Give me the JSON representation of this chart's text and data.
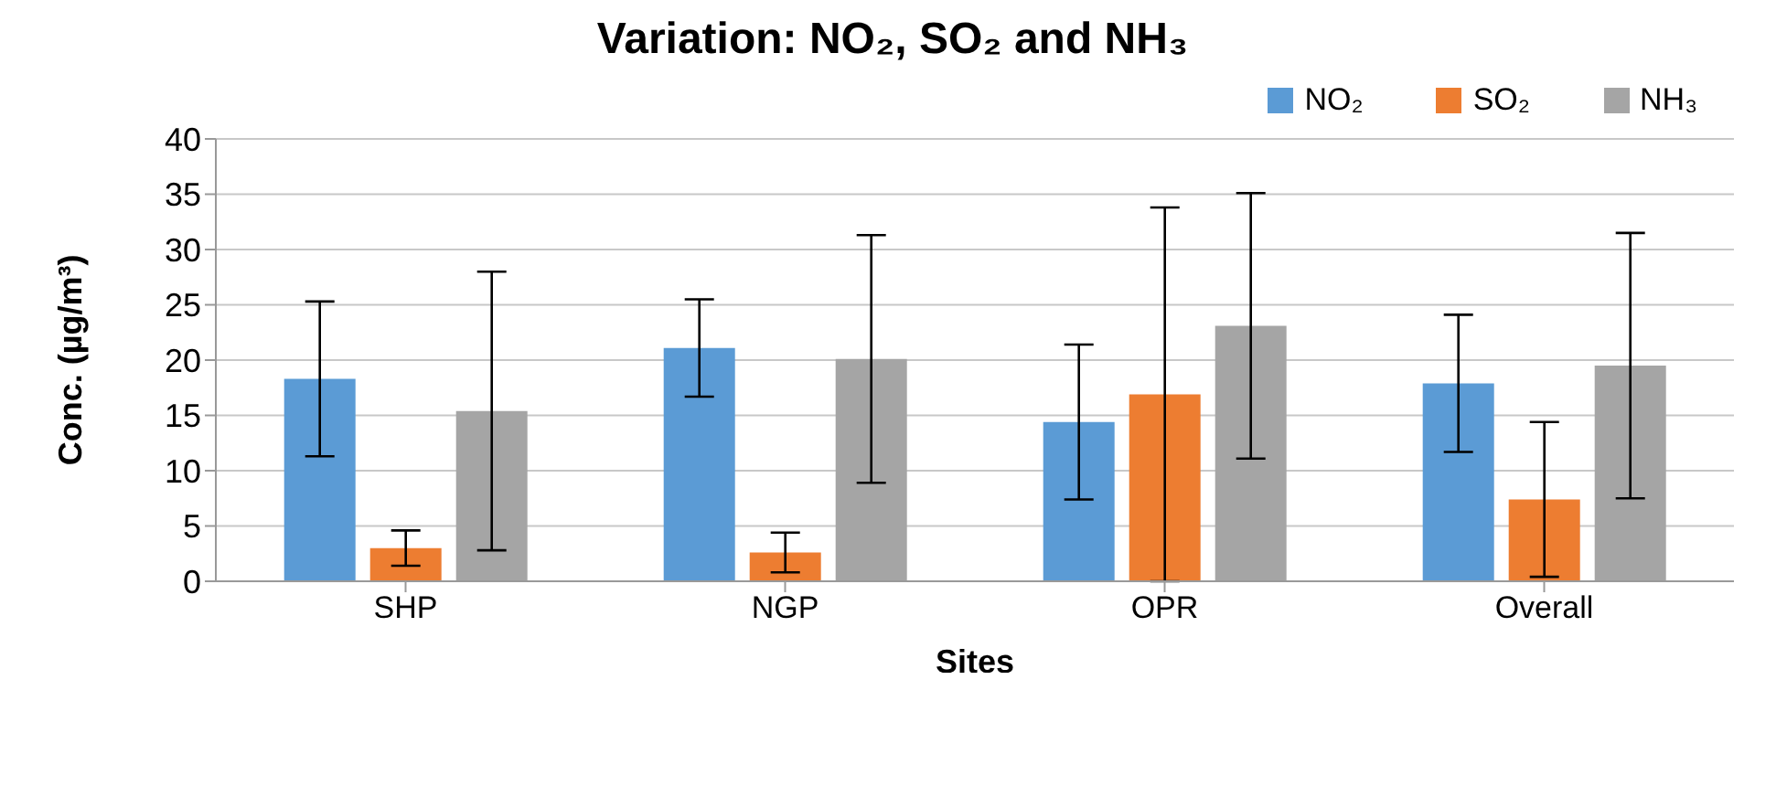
{
  "chart_data": {
    "type": "bar",
    "title": "Variation: NO₂, SO₂ and NH₃",
    "xlabel": "Sites",
    "ylabel": "Conc. (µg/m³)",
    "categories": [
      "SHP",
      "NGP",
      "OPR",
      "Overall"
    ],
    "series": [
      {
        "name": "NO₂",
        "color": "#5b9bd5",
        "values": [
          18.3,
          21.1,
          14.4,
          17.9
        ],
        "errors": [
          7.0,
          4.4,
          7.0,
          6.2
        ]
      },
      {
        "name": "SO₂",
        "color": "#ed7d31",
        "values": [
          3.0,
          2.6,
          16.9,
          7.4
        ],
        "errors": [
          1.6,
          1.8,
          16.9,
          7.0
        ]
      },
      {
        "name": "NH₃",
        "color": "#a5a5a5",
        "values": [
          15.4,
          20.1,
          23.1,
          19.5
        ],
        "errors": [
          12.6,
          11.2,
          12.0,
          12.0
        ]
      }
    ],
    "ylim": [
      0,
      40
    ],
    "yticks": [
      0,
      5,
      10,
      15,
      20,
      25,
      30,
      35,
      40
    ],
    "grid": "y",
    "legend": "top right"
  }
}
